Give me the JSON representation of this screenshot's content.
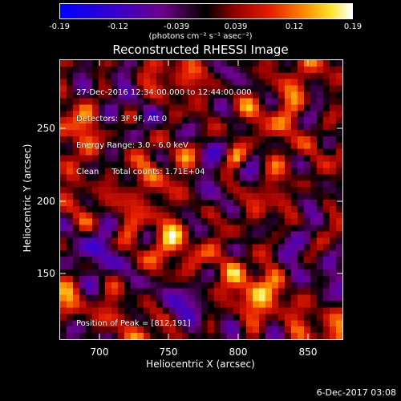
{
  "colorbar": {
    "tick_labels": [
      "-0.19",
      "-0.12",
      "-0.039",
      "0.039",
      "0.12",
      "0.19"
    ],
    "units": "(photons cm⁻² s⁻¹ asec⁻²)",
    "range": [
      -0.19,
      0.19
    ]
  },
  "title": "Reconstructed RHESSI Image",
  "info": {
    "line1": "27-Dec-2016 12:34:00.000 to 12:44:00.000",
    "line2": "Detectors: 3F 9F, Att 0",
    "line3": "Energy Range: 3.0 - 6.0 keV",
    "line4": "Clean     Total counts: 1.71E+04"
  },
  "peak_text": "Position of Peak = [812,191]",
  "axes": {
    "xlabel": "Heliocentric X (arcsec)",
    "ylabel": "Heliocentric Y (arcsec)",
    "x_ticks": [
      "700",
      "750",
      "800",
      "850"
    ],
    "y_ticks": [
      "150",
      "200",
      "250"
    ]
  },
  "timestamp": "6-Dec-2017 03:08"
}
